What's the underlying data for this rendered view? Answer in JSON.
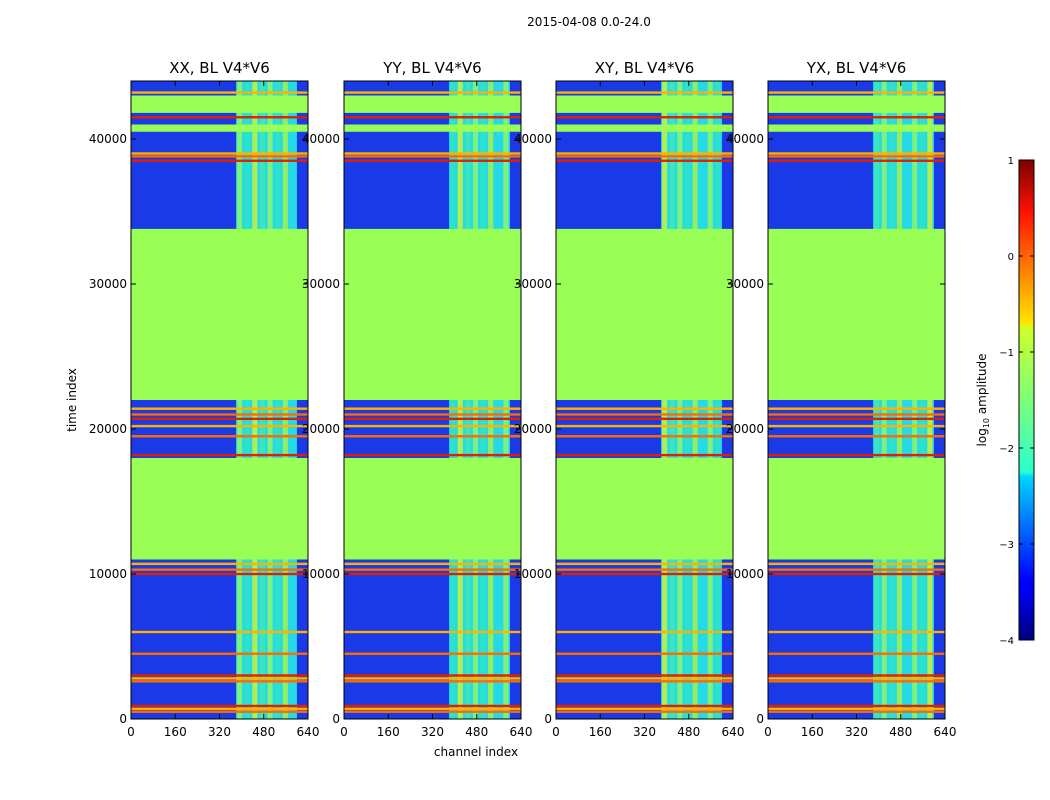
{
  "chart_data": {
    "type": "heatmap",
    "suptitle": "2015-04-08 0.0-24.0",
    "xlabel": "channel index",
    "ylabel": "time index",
    "xlim": [
      0,
      640
    ],
    "ylim": [
      0,
      44000
    ],
    "xticks": [
      "0",
      "160",
      "320",
      "480",
      "640"
    ],
    "yticks": [
      "0",
      "10000",
      "20000",
      "30000",
      "40000"
    ],
    "xtick_values": [
      0,
      160,
      320,
      480,
      640
    ],
    "ytick_values": [
      0,
      10000,
      20000,
      30000,
      40000
    ],
    "colorbar": {
      "label_prefix": "log",
      "label_sub": "10",
      "label_suffix": " amplitude",
      "ticks": [
        "1",
        "0",
        "−1",
        "−2",
        "−3",
        "−4"
      ],
      "tick_values": [
        1,
        0,
        -1,
        -2,
        -3,
        -4
      ],
      "range": [
        -4,
        1
      ]
    },
    "panels": [
      {
        "title": "XX, BL V4*V6"
      },
      {
        "title": "YY, BL V4*V6"
      },
      {
        "title": "XY, BL V4*V6"
      },
      {
        "title": "YX, BL V4*V6"
      }
    ],
    "flagged_time_ranges": [
      [
        11000,
        18000
      ],
      [
        22000,
        33800
      ],
      [
        40500,
        41000
      ],
      [
        41800,
        43000
      ]
    ],
    "rfi_channel_band": [
      380,
      600
    ],
    "hot_time_rows": [
      500,
      700,
      900,
      2600,
      2800,
      3000,
      4500,
      6000,
      10000,
      10300,
      10700,
      18200,
      19500,
      20200,
      20700,
      21000,
      21400,
      38500,
      38800,
      39000,
      41500,
      42200,
      43200
    ]
  }
}
